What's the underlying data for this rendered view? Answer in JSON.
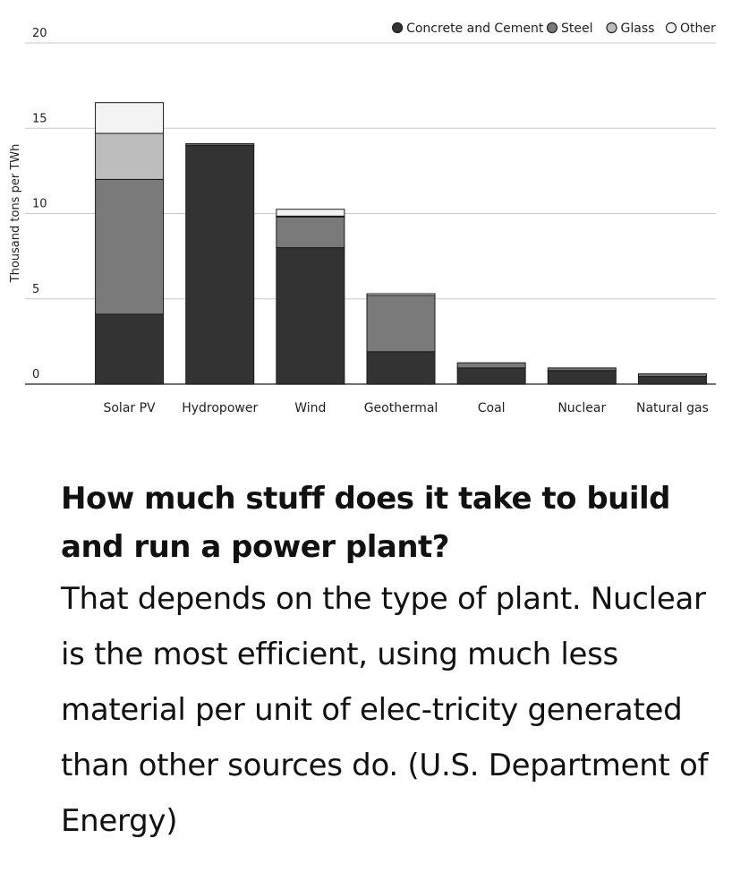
{
  "chart_data": {
    "type": "bar",
    "stacked": true,
    "categories": [
      "Solar PV",
      "Hydropower",
      "Wind",
      "Geothermal",
      "Coal",
      "Nuclear",
      "Natural gas"
    ],
    "series": [
      {
        "name": "Concrete and Cement",
        "color": "#333333",
        "values": [
          4.1,
          14.0,
          8.0,
          1.9,
          0.95,
          0.8,
          0.45
        ]
      },
      {
        "name": "Steel",
        "color": "#7a7a7a",
        "values": [
          7.9,
          0.1,
          1.8,
          3.3,
          0.3,
          0.15,
          0.15
        ]
      },
      {
        "name": "Glass",
        "color": "#bdbdbd",
        "values": [
          2.7,
          0,
          0.05,
          0,
          0,
          0,
          0
        ]
      },
      {
        "name": "Other",
        "color": "#f3f3f3",
        "values": [
          1.8,
          0,
          0.4,
          0.1,
          0,
          0,
          0
        ]
      }
    ],
    "title": "",
    "xlabel": "",
    "ylabel": "Thousand tons per TWh",
    "ylim": [
      0,
      20
    ],
    "yticks": [
      0,
      5,
      10,
      15,
      20
    ],
    "grid": true,
    "legend_position": "top-right"
  },
  "caption": {
    "heading": "How much stuff does it take to build and run a power plant?",
    "body": "That depends on the type of plant. Nuclear is the most efficient, using much less material per unit of elec-tricity generated than other sources do. (U.S. Department of Energy)"
  }
}
